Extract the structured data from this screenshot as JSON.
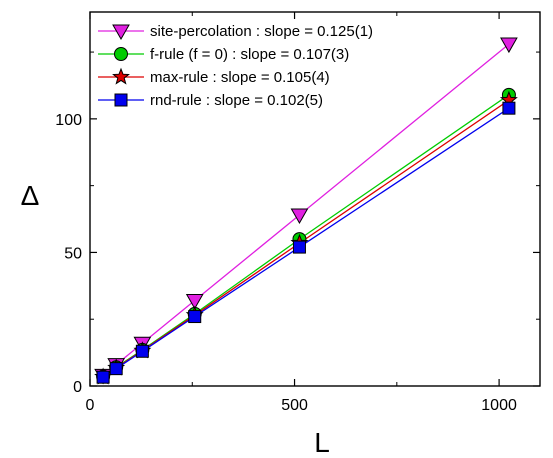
{
  "chart_data": {
    "type": "line",
    "title": "",
    "xlabel": "L",
    "ylabel": "Δ",
    "xlim": [
      0,
      1100
    ],
    "ylim": [
      0,
      140
    ],
    "x_ticks": [
      0,
      500,
      1000
    ],
    "y_ticks": [
      0,
      50,
      100
    ],
    "x_tick_labels": [
      "0",
      "500",
      "1000"
    ],
    "y_tick_labels": [
      "0",
      "50",
      "100"
    ],
    "grid": false,
    "legend_position": "top-left",
    "x": [
      32,
      64,
      128,
      256,
      512,
      1024
    ],
    "series": [
      {
        "name": "site-percolation : slope = 0.125(1)",
        "marker": "triangle-down",
        "color": "#e020e0",
        "values": [
          4,
          8,
          16,
          32,
          64,
          128
        ]
      },
      {
        "name": "f-rule (f = 0) : slope = 0.107(3)",
        "marker": "circle",
        "color": "#00cc00",
        "values": [
          3.5,
          7,
          13.5,
          27,
          55,
          109
        ]
      },
      {
        "name": "max-rule : slope = 0.105(4)",
        "marker": "star",
        "color": "#dd0000",
        "values": [
          3.4,
          6.8,
          13.2,
          26.5,
          53.5,
          107
        ]
      },
      {
        "name": "rnd-rule : slope = 0.102(5)",
        "marker": "square",
        "color": "#0000ee",
        "values": [
          3.3,
          6.5,
          13,
          26,
          52,
          104
        ]
      }
    ]
  }
}
